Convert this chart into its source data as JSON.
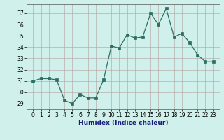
{
  "x": [
    0,
    1,
    2,
    3,
    4,
    5,
    6,
    7,
    8,
    9,
    10,
    11,
    12,
    13,
    14,
    15,
    16,
    17,
    18,
    19,
    20,
    21,
    22,
    23
  ],
  "y": [
    31.0,
    31.2,
    31.2,
    31.1,
    29.3,
    29.0,
    29.8,
    29.5,
    29.5,
    31.1,
    34.1,
    33.9,
    35.1,
    34.8,
    34.9,
    37.0,
    36.0,
    37.4,
    34.9,
    35.2,
    34.4,
    33.3,
    32.7,
    32.7
  ],
  "xlabel": "Humidex (Indice chaleur)",
  "ylim": [
    28.5,
    37.8
  ],
  "yticks": [
    29,
    30,
    31,
    32,
    33,
    34,
    35,
    36,
    37
  ],
  "xticks": [
    0,
    1,
    2,
    3,
    4,
    5,
    6,
    7,
    8,
    9,
    10,
    11,
    12,
    13,
    14,
    15,
    16,
    17,
    18,
    19,
    20,
    21,
    22,
    23
  ],
  "line_color": "#2d6e63",
  "marker": "s",
  "marker_size": 2.5,
  "bg_color": "#cff0eb",
  "grid_color": "#b8a8a8"
}
